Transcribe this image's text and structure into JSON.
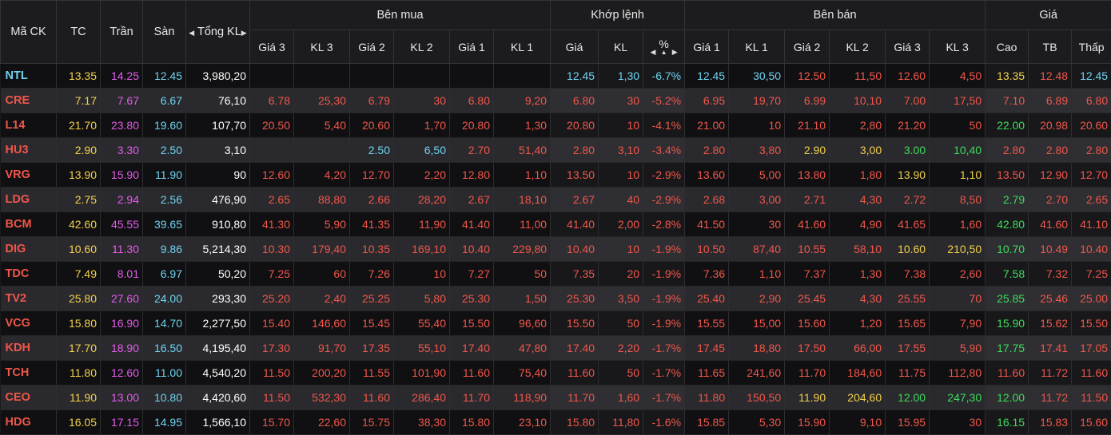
{
  "header": {
    "symbol": "Mã CK",
    "ref": "TC",
    "ceil": "Trần",
    "floor": "Sàn",
    "total_vol": "Tổng KL",
    "buy_group": "Bên mua",
    "match_group": "Khớp lệnh",
    "sell_group": "Bên bán",
    "price_group": "Giá",
    "buy_cols": [
      "Giá 3",
      "KL 3",
      "Giá 2",
      "KL 2",
      "Giá 1",
      "KL 1"
    ],
    "match_cols": [
      "Giá",
      "KL",
      "%"
    ],
    "sell_cols": [
      "Giá 1",
      "KL 1",
      "Giá 2",
      "KL 2",
      "Giá 3",
      "KL 3"
    ],
    "price_cols": [
      "Cao",
      "TB",
      "Thấp"
    ]
  },
  "colors": {
    "ref": "#f2d04a",
    "ceil": "#e05ce8",
    "floor": "#6fd3f0",
    "up": "#3ddc5a",
    "down": "#f0564a"
  },
  "rows": [
    {
      "sym": "NTL",
      "symc": "floor",
      "tc": "13.35",
      "tran": "14.25",
      "san": "12.45",
      "tkl": "3,980,20",
      "buy": [
        [
          "",
          ""
        ],
        [
          "",
          ""
        ],
        [
          "",
          ""
        ],
        [
          "",
          ""
        ],
        [
          "",
          ""
        ],
        [
          "",
          ""
        ]
      ],
      "match": [
        [
          "12.45",
          "floor"
        ],
        [
          "1,30",
          "floor"
        ],
        [
          "-6.7%",
          "floor"
        ]
      ],
      "sell": [
        [
          "12.45",
          "floor"
        ],
        [
          "30,50",
          "floor"
        ],
        [
          "12.50",
          "down"
        ],
        [
          "11,50",
          "down"
        ],
        [
          "12.60",
          "down"
        ],
        [
          "4,50",
          "down"
        ]
      ],
      "price": [
        [
          "13.35",
          "ref"
        ],
        [
          "12.48",
          "down"
        ],
        [
          "12.45",
          "floor"
        ]
      ]
    },
    {
      "sym": "CRE",
      "symc": "down",
      "tc": "7.17",
      "tran": "7.67",
      "san": "6.67",
      "tkl": "76,10",
      "buy": [
        [
          "6.78",
          "down"
        ],
        [
          "25,30",
          "down"
        ],
        [
          "6.79",
          "down"
        ],
        [
          "30",
          "down"
        ],
        [
          "6.80",
          "down"
        ],
        [
          "9,20",
          "down"
        ]
      ],
      "match": [
        [
          "6.80",
          "down"
        ],
        [
          "30",
          "down"
        ],
        [
          "-5.2%",
          "down"
        ]
      ],
      "sell": [
        [
          "6.95",
          "down"
        ],
        [
          "19,70",
          "down"
        ],
        [
          "6.99",
          "down"
        ],
        [
          "10,10",
          "down"
        ],
        [
          "7.00",
          "down"
        ],
        [
          "17,50",
          "down"
        ]
      ],
      "price": [
        [
          "7.10",
          "down"
        ],
        [
          "6.89",
          "down"
        ],
        [
          "6.80",
          "down"
        ]
      ]
    },
    {
      "sym": "L14",
      "symc": "down",
      "tc": "21.70",
      "tran": "23.80",
      "san": "19.60",
      "tkl": "107,70",
      "buy": [
        [
          "20.50",
          "down"
        ],
        [
          "5,40",
          "down"
        ],
        [
          "20.60",
          "down"
        ],
        [
          "1,70",
          "down"
        ],
        [
          "20.80",
          "down"
        ],
        [
          "1,30",
          "down"
        ]
      ],
      "match": [
        [
          "20.80",
          "down"
        ],
        [
          "10",
          "down"
        ],
        [
          "-4.1%",
          "down"
        ]
      ],
      "sell": [
        [
          "21.00",
          "down"
        ],
        [
          "10",
          "down"
        ],
        [
          "21.10",
          "down"
        ],
        [
          "2,80",
          "down"
        ],
        [
          "21.20",
          "down"
        ],
        [
          "50",
          "down"
        ]
      ],
      "price": [
        [
          "22.00",
          "up"
        ],
        [
          "20.98",
          "down"
        ],
        [
          "20.60",
          "down"
        ]
      ]
    },
    {
      "sym": "HU3",
      "symc": "down",
      "tc": "2.90",
      "tran": "3.30",
      "san": "2.50",
      "tkl": "3,10",
      "buy": [
        [
          "",
          ""
        ],
        [
          "",
          ""
        ],
        [
          "2.50",
          "floor"
        ],
        [
          "6,50",
          "floor"
        ],
        [
          "2.70",
          "down"
        ],
        [
          "51,40",
          "down"
        ]
      ],
      "match": [
        [
          "2.80",
          "down"
        ],
        [
          "3,10",
          "down"
        ],
        [
          "-3.4%",
          "down"
        ]
      ],
      "sell": [
        [
          "2.80",
          "down"
        ],
        [
          "3,80",
          "down"
        ],
        [
          "2.90",
          "ref"
        ],
        [
          "3,00",
          "ref"
        ],
        [
          "3.00",
          "up"
        ],
        [
          "10,40",
          "up"
        ]
      ],
      "price": [
        [
          "2.80",
          "down"
        ],
        [
          "2.80",
          "down"
        ],
        [
          "2.80",
          "down"
        ]
      ]
    },
    {
      "sym": "VRG",
      "symc": "down",
      "tc": "13.90",
      "tran": "15.90",
      "san": "11.90",
      "tkl": "90",
      "buy": [
        [
          "12.60",
          "down"
        ],
        [
          "4,20",
          "down"
        ],
        [
          "12.70",
          "down"
        ],
        [
          "2,20",
          "down"
        ],
        [
          "12.80",
          "down"
        ],
        [
          "1,10",
          "down"
        ]
      ],
      "match": [
        [
          "13.50",
          "down"
        ],
        [
          "10",
          "down"
        ],
        [
          "-2.9%",
          "down"
        ]
      ],
      "sell": [
        [
          "13.60",
          "down"
        ],
        [
          "5,00",
          "down"
        ],
        [
          "13.80",
          "down"
        ],
        [
          "1,80",
          "down"
        ],
        [
          "13.90",
          "ref"
        ],
        [
          "1,10",
          "ref"
        ]
      ],
      "price": [
        [
          "13.50",
          "down"
        ],
        [
          "12.90",
          "down"
        ],
        [
          "12.70",
          "down"
        ]
      ]
    },
    {
      "sym": "LDG",
      "symc": "down",
      "tc": "2.75",
      "tran": "2.94",
      "san": "2.56",
      "tkl": "476,90",
      "buy": [
        [
          "2.65",
          "down"
        ],
        [
          "88,80",
          "down"
        ],
        [
          "2.66",
          "down"
        ],
        [
          "28,20",
          "down"
        ],
        [
          "2.67",
          "down"
        ],
        [
          "18,10",
          "down"
        ]
      ],
      "match": [
        [
          "2.67",
          "down"
        ],
        [
          "40",
          "down"
        ],
        [
          "-2.9%",
          "down"
        ]
      ],
      "sell": [
        [
          "2.68",
          "down"
        ],
        [
          "3,00",
          "down"
        ],
        [
          "2.71",
          "down"
        ],
        [
          "4,30",
          "down"
        ],
        [
          "2.72",
          "down"
        ],
        [
          "8,50",
          "down"
        ]
      ],
      "price": [
        [
          "2.79",
          "up"
        ],
        [
          "2.70",
          "down"
        ],
        [
          "2.65",
          "down"
        ]
      ]
    },
    {
      "sym": "BCM",
      "symc": "down",
      "tc": "42.60",
      "tran": "45.55",
      "san": "39.65",
      "tkl": "910,80",
      "buy": [
        [
          "41.30",
          "down"
        ],
        [
          "5,90",
          "down"
        ],
        [
          "41.35",
          "down"
        ],
        [
          "11,90",
          "down"
        ],
        [
          "41.40",
          "down"
        ],
        [
          "11,00",
          "down"
        ]
      ],
      "match": [
        [
          "41.40",
          "down"
        ],
        [
          "2,00",
          "down"
        ],
        [
          "-2.8%",
          "down"
        ]
      ],
      "sell": [
        [
          "41.50",
          "down"
        ],
        [
          "30",
          "down"
        ],
        [
          "41.60",
          "down"
        ],
        [
          "4,90",
          "down"
        ],
        [
          "41.65",
          "down"
        ],
        [
          "1,60",
          "down"
        ]
      ],
      "price": [
        [
          "42.80",
          "up"
        ],
        [
          "41.60",
          "down"
        ],
        [
          "41.10",
          "down"
        ]
      ]
    },
    {
      "sym": "DIG",
      "symc": "down",
      "tc": "10.60",
      "tran": "11.30",
      "san": "9.86",
      "tkl": "5,214,30",
      "buy": [
        [
          "10.30",
          "down"
        ],
        [
          "179,40",
          "down"
        ],
        [
          "10.35",
          "down"
        ],
        [
          "169,10",
          "down"
        ],
        [
          "10.40",
          "down"
        ],
        [
          "229,80",
          "down"
        ]
      ],
      "match": [
        [
          "10.40",
          "down"
        ],
        [
          "10",
          "down"
        ],
        [
          "-1.9%",
          "down"
        ]
      ],
      "sell": [
        [
          "10.50",
          "down"
        ],
        [
          "87,40",
          "down"
        ],
        [
          "10.55",
          "down"
        ],
        [
          "58,10",
          "down"
        ],
        [
          "10.60",
          "ref"
        ],
        [
          "210,50",
          "ref"
        ]
      ],
      "price": [
        [
          "10.70",
          "up"
        ],
        [
          "10.49",
          "down"
        ],
        [
          "10.40",
          "down"
        ]
      ]
    },
    {
      "sym": "TDC",
      "symc": "down",
      "tc": "7.49",
      "tran": "8.01",
      "san": "6.97",
      "tkl": "50,20",
      "buy": [
        [
          "7.25",
          "down"
        ],
        [
          "60",
          "down"
        ],
        [
          "7.26",
          "down"
        ],
        [
          "10",
          "down"
        ],
        [
          "7.27",
          "down"
        ],
        [
          "50",
          "down"
        ]
      ],
      "match": [
        [
          "7.35",
          "down"
        ],
        [
          "20",
          "down"
        ],
        [
          "-1.9%",
          "down"
        ]
      ],
      "sell": [
        [
          "7.36",
          "down"
        ],
        [
          "1,10",
          "down"
        ],
        [
          "7.37",
          "down"
        ],
        [
          "1,30",
          "down"
        ],
        [
          "7.38",
          "down"
        ],
        [
          "2,60",
          "down"
        ]
      ],
      "price": [
        [
          "7.58",
          "up"
        ],
        [
          "7.32",
          "down"
        ],
        [
          "7.25",
          "down"
        ]
      ]
    },
    {
      "sym": "TV2",
      "symc": "down",
      "tc": "25.80",
      "tran": "27.60",
      "san": "24.00",
      "tkl": "293,30",
      "buy": [
        [
          "25.20",
          "down"
        ],
        [
          "2,40",
          "down"
        ],
        [
          "25.25",
          "down"
        ],
        [
          "5,80",
          "down"
        ],
        [
          "25.30",
          "down"
        ],
        [
          "1,50",
          "down"
        ]
      ],
      "match": [
        [
          "25.30",
          "down"
        ],
        [
          "3,50",
          "down"
        ],
        [
          "-1.9%",
          "down"
        ]
      ],
      "sell": [
        [
          "25.40",
          "down"
        ],
        [
          "2,90",
          "down"
        ],
        [
          "25.45",
          "down"
        ],
        [
          "4,30",
          "down"
        ],
        [
          "25.55",
          "down"
        ],
        [
          "70",
          "down"
        ]
      ],
      "price": [
        [
          "25.85",
          "up"
        ],
        [
          "25.46",
          "down"
        ],
        [
          "25.00",
          "down"
        ]
      ]
    },
    {
      "sym": "VCG",
      "symc": "down",
      "tc": "15.80",
      "tran": "16.90",
      "san": "14.70",
      "tkl": "2,277,50",
      "buy": [
        [
          "15.40",
          "down"
        ],
        [
          "146,60",
          "down"
        ],
        [
          "15.45",
          "down"
        ],
        [
          "55,40",
          "down"
        ],
        [
          "15.50",
          "down"
        ],
        [
          "96,60",
          "down"
        ]
      ],
      "match": [
        [
          "15.50",
          "down"
        ],
        [
          "50",
          "down"
        ],
        [
          "-1.9%",
          "down"
        ]
      ],
      "sell": [
        [
          "15.55",
          "down"
        ],
        [
          "15,00",
          "down"
        ],
        [
          "15.60",
          "down"
        ],
        [
          "1,20",
          "down"
        ],
        [
          "15.65",
          "down"
        ],
        [
          "7,90",
          "down"
        ]
      ],
      "price": [
        [
          "15.90",
          "up"
        ],
        [
          "15.62",
          "down"
        ],
        [
          "15.50",
          "down"
        ]
      ]
    },
    {
      "sym": "KDH",
      "symc": "down",
      "tc": "17.70",
      "tran": "18.90",
      "san": "16.50",
      "tkl": "4,195,40",
      "buy": [
        [
          "17.30",
          "down"
        ],
        [
          "91,70",
          "down"
        ],
        [
          "17.35",
          "down"
        ],
        [
          "55,10",
          "down"
        ],
        [
          "17.40",
          "down"
        ],
        [
          "47,80",
          "down"
        ]
      ],
      "match": [
        [
          "17.40",
          "down"
        ],
        [
          "2,20",
          "down"
        ],
        [
          "-1.7%",
          "down"
        ]
      ],
      "sell": [
        [
          "17.45",
          "down"
        ],
        [
          "18,80",
          "down"
        ],
        [
          "17.50",
          "down"
        ],
        [
          "66,00",
          "down"
        ],
        [
          "17.55",
          "down"
        ],
        [
          "5,90",
          "down"
        ]
      ],
      "price": [
        [
          "17.75",
          "up"
        ],
        [
          "17.41",
          "down"
        ],
        [
          "17.05",
          "down"
        ]
      ]
    },
    {
      "sym": "TCH",
      "symc": "down",
      "tc": "11.80",
      "tran": "12.60",
      "san": "11.00",
      "tkl": "4,540,20",
      "buy": [
        [
          "11.50",
          "down"
        ],
        [
          "200,20",
          "down"
        ],
        [
          "11.55",
          "down"
        ],
        [
          "101,90",
          "down"
        ],
        [
          "11.60",
          "down"
        ],
        [
          "75,40",
          "down"
        ]
      ],
      "match": [
        [
          "11.60",
          "down"
        ],
        [
          "50",
          "down"
        ],
        [
          "-1.7%",
          "down"
        ]
      ],
      "sell": [
        [
          "11.65",
          "down"
        ],
        [
          "241,60",
          "down"
        ],
        [
          "11.70",
          "down"
        ],
        [
          "184,60",
          "down"
        ],
        [
          "11.75",
          "down"
        ],
        [
          "112,80",
          "down"
        ]
      ],
      "price": [
        [
          "11.60",
          "down"
        ],
        [
          "11.72",
          "down"
        ],
        [
          "11.60",
          "down"
        ]
      ]
    },
    {
      "sym": "CEO",
      "symc": "down",
      "tc": "11.90",
      "tran": "13.00",
      "san": "10.80",
      "tkl": "4,420,60",
      "buy": [
        [
          "11.50",
          "down"
        ],
        [
          "532,30",
          "down"
        ],
        [
          "11.60",
          "down"
        ],
        [
          "286,40",
          "down"
        ],
        [
          "11.70",
          "down"
        ],
        [
          "118,90",
          "down"
        ]
      ],
      "match": [
        [
          "11.70",
          "down"
        ],
        [
          "1,60",
          "down"
        ],
        [
          "-1.7%",
          "down"
        ]
      ],
      "sell": [
        [
          "11.80",
          "down"
        ],
        [
          "150,50",
          "down"
        ],
        [
          "11.90",
          "ref"
        ],
        [
          "204,60",
          "ref"
        ],
        [
          "12.00",
          "up"
        ],
        [
          "247,30",
          "up"
        ]
      ],
      "price": [
        [
          "12.00",
          "up"
        ],
        [
          "11.72",
          "down"
        ],
        [
          "11.50",
          "down"
        ]
      ]
    },
    {
      "sym": "HDG",
      "symc": "down",
      "tc": "16.05",
      "tran": "17.15",
      "san": "14.95",
      "tkl": "1,566,10",
      "buy": [
        [
          "15.70",
          "down"
        ],
        [
          "22,60",
          "down"
        ],
        [
          "15.75",
          "down"
        ],
        [
          "38,30",
          "down"
        ],
        [
          "15.80",
          "down"
        ],
        [
          "23,10",
          "down"
        ]
      ],
      "match": [
        [
          "15.80",
          "down"
        ],
        [
          "11,80",
          "down"
        ],
        [
          "-1.6%",
          "down"
        ]
      ],
      "sell": [
        [
          "15.85",
          "down"
        ],
        [
          "5,30",
          "down"
        ],
        [
          "15.90",
          "down"
        ],
        [
          "9,10",
          "down"
        ],
        [
          "15.95",
          "down"
        ],
        [
          "30",
          "down"
        ]
      ],
      "price": [
        [
          "16.15",
          "up"
        ],
        [
          "15.83",
          "down"
        ],
        [
          "15.60",
          "down"
        ]
      ]
    }
  ]
}
